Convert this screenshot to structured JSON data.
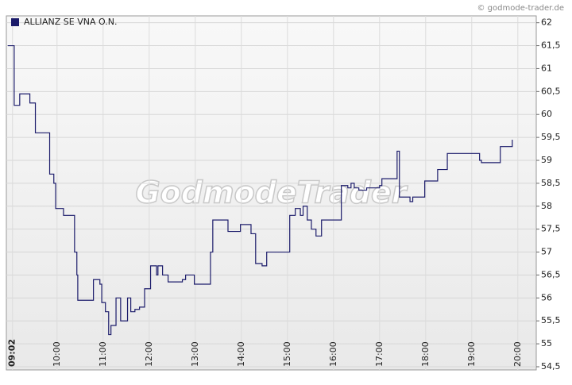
{
  "chart_data": {
    "type": "line",
    "step": true,
    "credit": "© godmode-trader.de",
    "watermark": "GodmodeTrader",
    "series": [
      {
        "name": "ALLIANZ SE VNA O.N.",
        "color": "#1c1c6b",
        "x": [
          8.93,
          9.07,
          9.19,
          9.41,
          9.53,
          9.84,
          9.93,
          9.97,
          10.14,
          10.38,
          10.43,
          10.45,
          10.79,
          10.93,
          10.97,
          11.05,
          11.12,
          11.17,
          11.28,
          11.38,
          11.53,
          11.6,
          11.69,
          11.79,
          11.9,
          12.03,
          12.16,
          12.19,
          12.29,
          12.41,
          12.72,
          12.79,
          12.98,
          13.33,
          13.38,
          13.71,
          13.98,
          14.21,
          14.31,
          14.45,
          14.55,
          15.0,
          15.05,
          15.17,
          15.28,
          15.34,
          15.43,
          15.52,
          15.62,
          15.74,
          16.1,
          16.17,
          16.31,
          16.38,
          16.45,
          16.55,
          16.72,
          17.0,
          17.05,
          17.33,
          17.38,
          17.43,
          17.66,
          17.72,
          17.95,
          17.98,
          18.26,
          18.47,
          19.1,
          19.17,
          19.21,
          19.59,
          19.62,
          19.86,
          19.88
        ],
        "values": [
          61.5,
          60.2,
          60.45,
          60.25,
          59.6,
          58.7,
          58.5,
          57.95,
          57.8,
          57.0,
          56.5,
          55.95,
          56.4,
          56.3,
          55.9,
          55.7,
          55.2,
          55.4,
          56.0,
          55.5,
          56.0,
          55.7,
          55.75,
          55.8,
          56.2,
          56.7,
          56.5,
          56.7,
          56.5,
          56.35,
          56.4,
          56.5,
          56.3,
          57.0,
          57.7,
          57.45,
          57.6,
          57.4,
          56.75,
          56.7,
          57.0,
          57.0,
          57.8,
          57.95,
          57.8,
          58.0,
          57.7,
          57.5,
          57.35,
          57.7,
          57.7,
          58.45,
          58.4,
          58.5,
          58.4,
          58.35,
          58.4,
          58.45,
          58.6,
          58.6,
          59.2,
          58.2,
          58.1,
          58.2,
          58.2,
          58.55,
          58.8,
          59.15,
          59.15,
          59.0,
          58.95,
          58.95,
          59.3,
          59.3,
          59.45
        ]
      }
    ],
    "xlim": [
      8.9,
      20.4
    ],
    "xticks": [
      {
        "value": 9.0333,
        "label": "09:02"
      },
      {
        "value": 10,
        "label": "10:00"
      },
      {
        "value": 11,
        "label": "11:00"
      },
      {
        "value": 12,
        "label": "12:00"
      },
      {
        "value": 13,
        "label": "13:00"
      },
      {
        "value": 14,
        "label": "14:00"
      },
      {
        "value": 15,
        "label": "15:00"
      },
      {
        "value": 16,
        "label": "16:00"
      },
      {
        "value": 17,
        "label": "17:00"
      },
      {
        "value": 18,
        "label": "18:00"
      },
      {
        "value": 19,
        "label": "19:00"
      },
      {
        "value": 20,
        "label": "20:00"
      }
    ],
    "ylim": [
      54.5,
      62.15
    ],
    "yticks": [
      {
        "value": 54.5,
        "label": "54,5"
      },
      55,
      {
        "value": 55.5,
        "label": "55,5"
      },
      56,
      {
        "value": 56.5,
        "label": "56,5"
      },
      57,
      {
        "value": 57.5,
        "label": "57,5"
      },
      58,
      {
        "value": 58.5,
        "label": "58,5"
      },
      59,
      {
        "value": 59.5,
        "label": "59,5"
      },
      60,
      {
        "value": 60.5,
        "label": "60,5"
      },
      61,
      {
        "value": 61.5,
        "label": "61,5"
      },
      62
    ],
    "grid": true,
    "legend": "top-left"
  }
}
